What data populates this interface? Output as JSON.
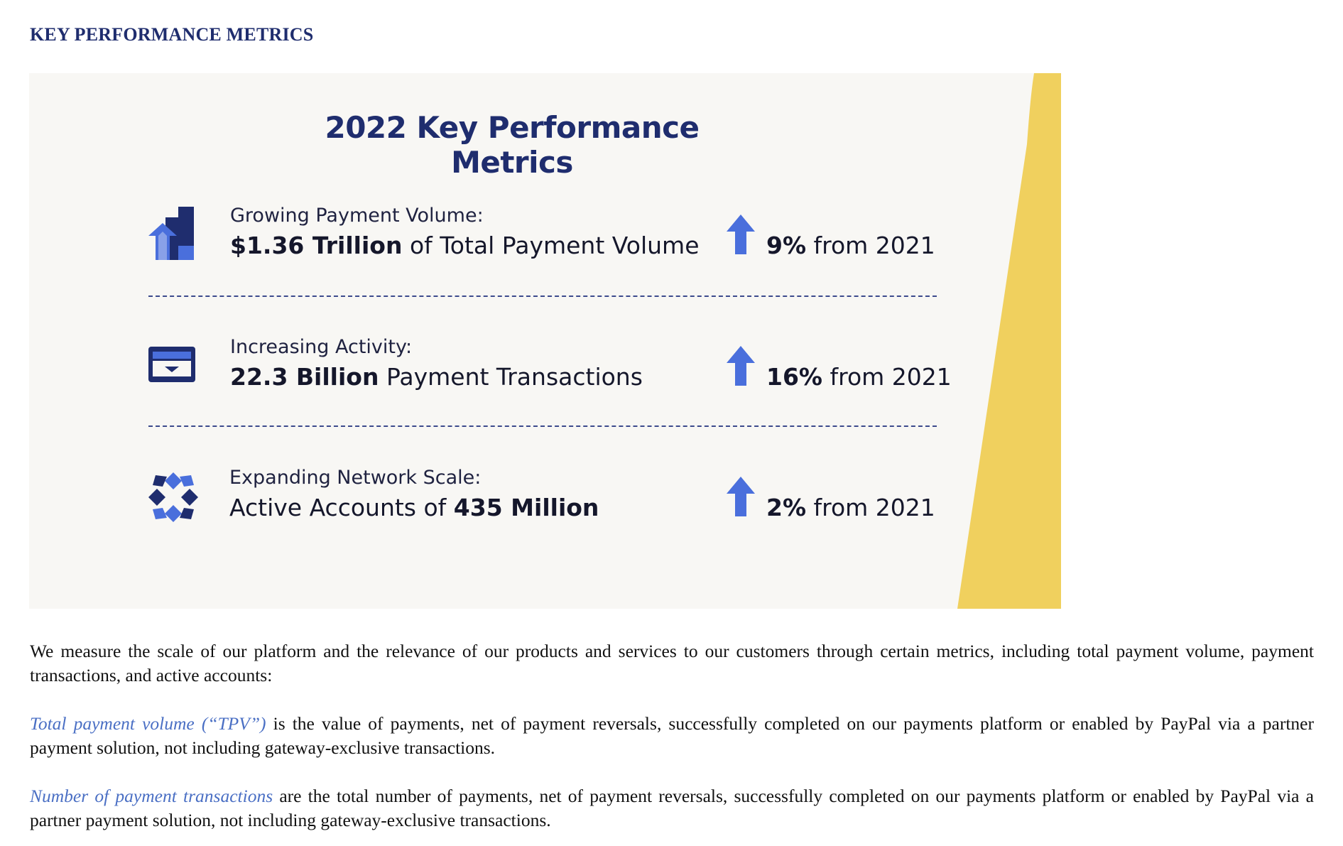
{
  "section": {
    "title": "KEY PERFORMANCE METRICS"
  },
  "card": {
    "title": "2022 Key Performance Metrics",
    "colors": {
      "background": "#f8f7f4",
      "accent": "#f0d05e",
      "navy": "#1f2d6e",
      "blue": "#4a6fdc"
    },
    "metrics": [
      {
        "icon": "bar-chart-growth-icon",
        "label": "Growing Payment Volume:",
        "value_bold": "$1.36 Trillion",
        "value_rest": " of Total Payment Volume",
        "change_bold": "9%",
        "change_rest": " from 2021",
        "direction": "up"
      },
      {
        "icon": "wallet-card-icon",
        "label": "Increasing Activity:",
        "value_bold": "22.3 Billion",
        "value_rest": " Payment Transactions",
        "change_bold": "16%",
        "change_rest": " from 2021",
        "direction": "up"
      },
      {
        "icon": "network-star-icon",
        "label": "Expanding Network Scale:",
        "value_prefix": "Active Accounts of ",
        "value_bold": "435 Million",
        "change_bold": "2%",
        "change_rest": " from 2021",
        "direction": "up"
      }
    ]
  },
  "paragraphs": [
    {
      "text": "We measure the scale of our platform and the relevance of our products and services to our customers through certain metrics, including total payment volume, payment transactions, and active accounts:"
    },
    {
      "term": "Total payment volume (“TPV”)",
      "text": " is the value of payments, net of payment reversals, successfully completed on our payments platform or enabled by PayPal via a partner payment solution, not including gateway-exclusive transactions."
    },
    {
      "term": "Number of payment transactions",
      "text": " are the total number of payments, net of payment reversals, successfully completed on our payments platform or enabled by PayPal via a partner payment solution, not including gateway-exclusive transactions."
    }
  ]
}
